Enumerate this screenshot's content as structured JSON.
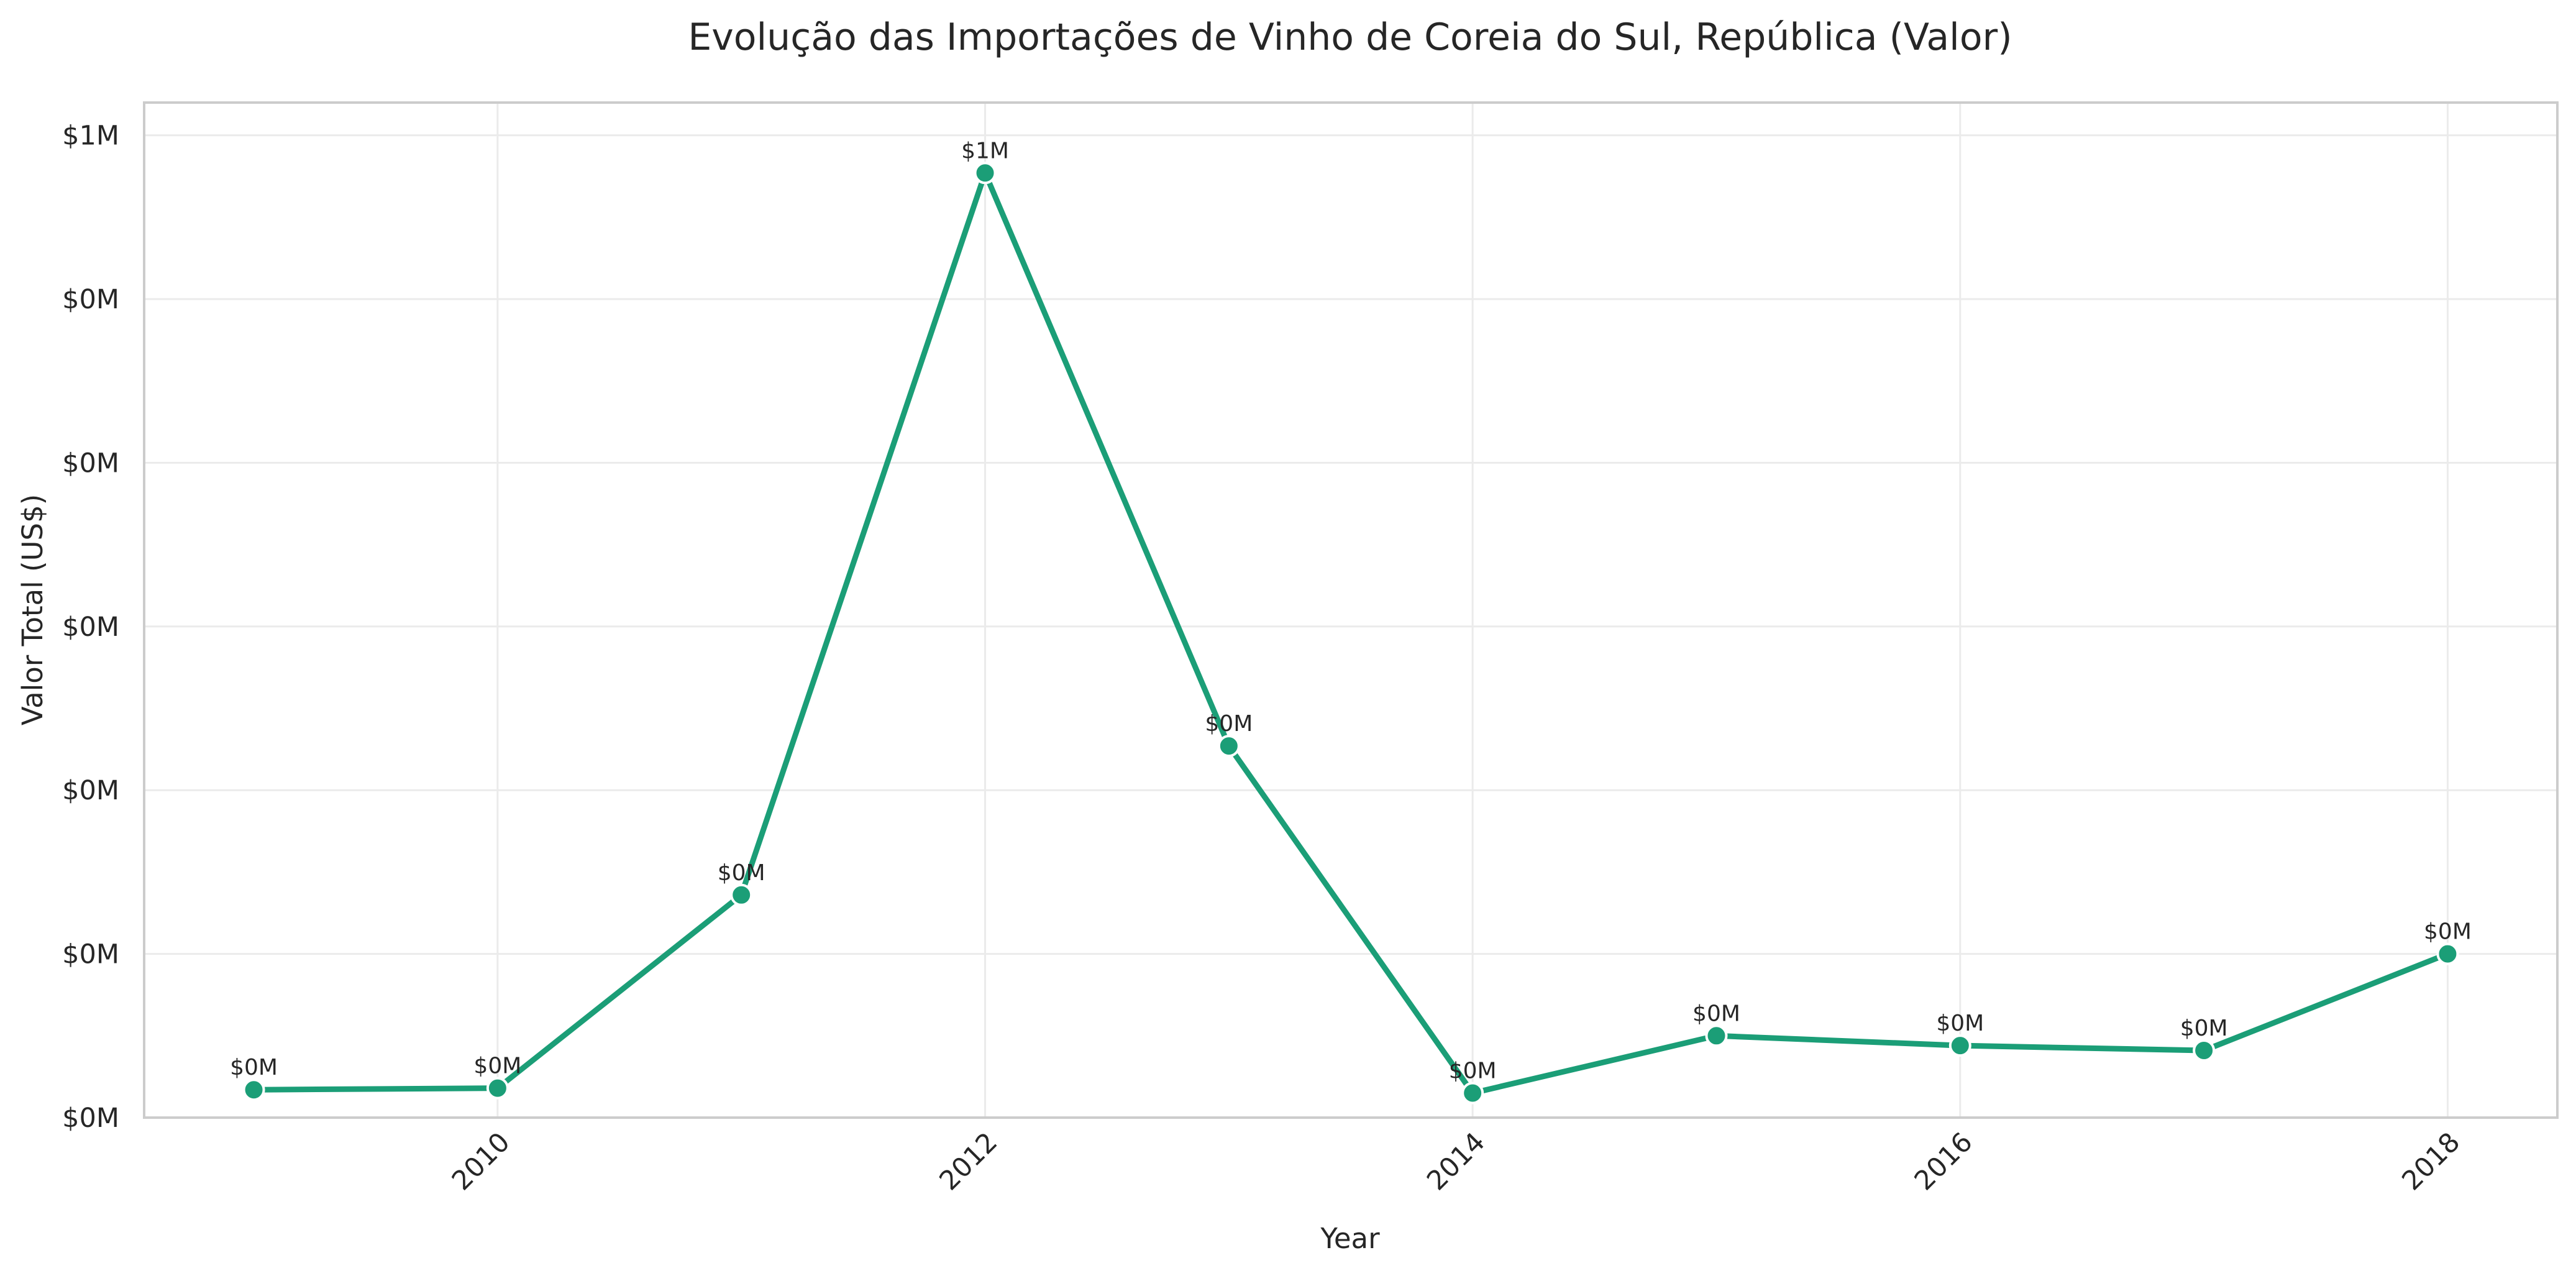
{
  "chart_data": {
    "type": "line",
    "title": "Evolução das Importações de Vinho de Coreia do Sul, República (Valor)",
    "xlabel": "Year",
    "ylabel": "Valor Total (US$)",
    "xlim": [
      2008.55,
      2018.45
    ],
    "ylim": [
      0.0,
      0.62
    ],
    "grid": true,
    "legend": "none",
    "x_ticks": [
      {
        "value": 2010,
        "label": "2010"
      },
      {
        "value": 2012,
        "label": "2012"
      },
      {
        "value": 2014,
        "label": "2014"
      },
      {
        "value": 2016,
        "label": "2016"
      },
      {
        "value": 2018,
        "label": "2018"
      }
    ],
    "y_ticks": [
      {
        "value": 0.0,
        "label": "$0M"
      },
      {
        "value": 0.1,
        "label": "$0M"
      },
      {
        "value": 0.2,
        "label": "$0M"
      },
      {
        "value": 0.3,
        "label": "$0M"
      },
      {
        "value": 0.4,
        "label": "$0M"
      },
      {
        "value": 0.5,
        "label": "$0M"
      },
      {
        "value": 0.6,
        "label": "$1M"
      }
    ],
    "series": [
      {
        "color": "#1b9e77",
        "points": [
          {
            "x": 2009,
            "y": 0.017,
            "label": "$0M"
          },
          {
            "x": 2010,
            "y": 0.018,
            "label": "$0M"
          },
          {
            "x": 2011,
            "y": 0.136,
            "label": "$0M"
          },
          {
            "x": 2012,
            "y": 0.577,
            "label": "$1M"
          },
          {
            "x": 2013,
            "y": 0.227,
            "label": "$0M"
          },
          {
            "x": 2014,
            "y": 0.015,
            "label": "$0M"
          },
          {
            "x": 2015,
            "y": 0.05,
            "label": "$0M"
          },
          {
            "x": 2016,
            "y": 0.044,
            "label": "$0M"
          },
          {
            "x": 2017,
            "y": 0.041,
            "label": "$0M"
          },
          {
            "x": 2018,
            "y": 0.1,
            "label": "$0M"
          }
        ]
      }
    ]
  }
}
